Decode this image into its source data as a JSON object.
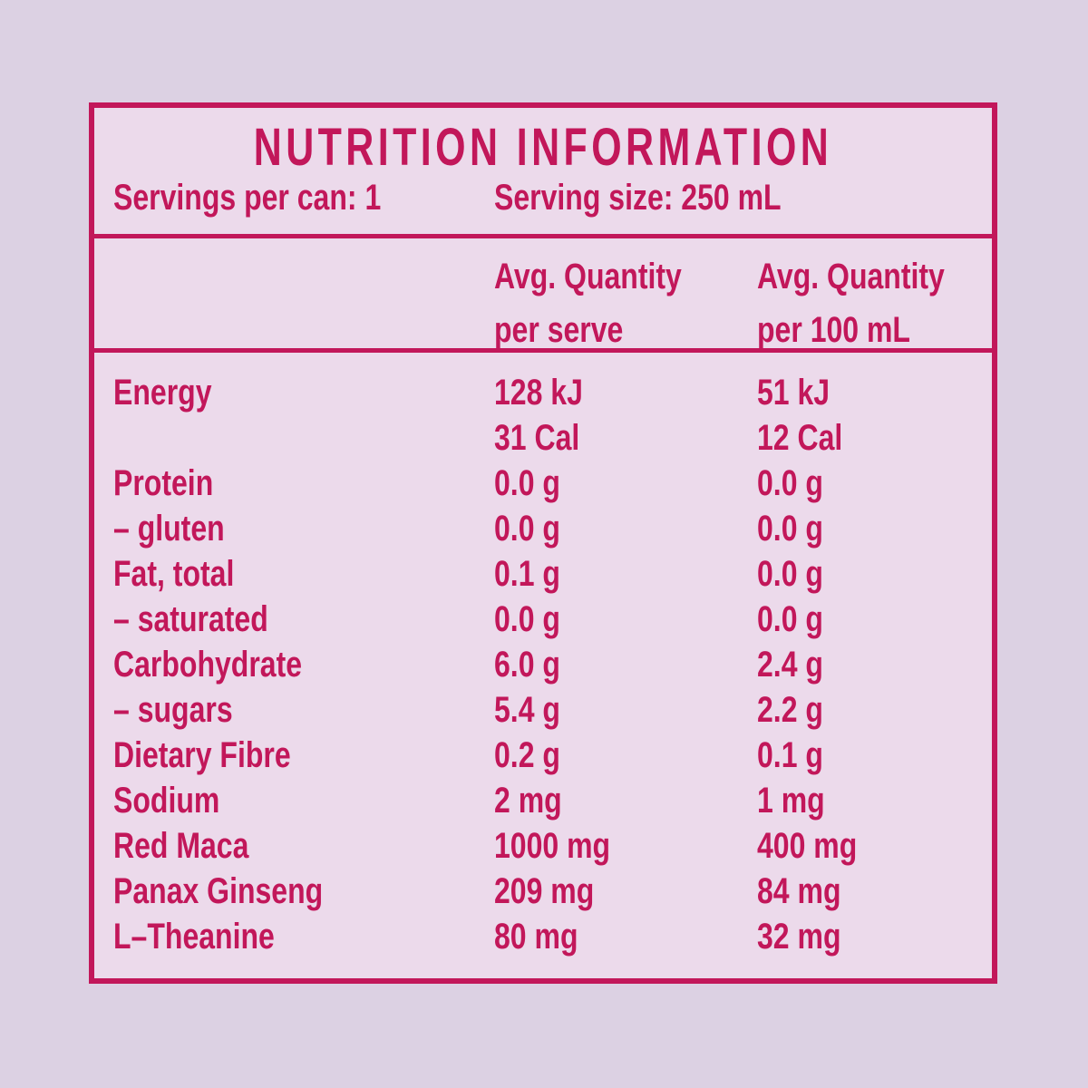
{
  "panel": {
    "title": "NUTRITION INFORMATION",
    "servings_label": "Servings per can: 1",
    "serving_size_label": "Serving size: 250 mL",
    "columns": {
      "per_serve": [
        "Avg. Quantity",
        "per serve"
      ],
      "per_100ml": [
        "Avg. Quantity",
        "per 100 mL"
      ]
    },
    "rows": [
      {
        "label": "Energy",
        "per_serve": "128 kJ",
        "per_100ml": "51 kJ"
      },
      {
        "label": "",
        "per_serve": "31 Cal",
        "per_100ml": "12 Cal"
      },
      {
        "label": "Protein",
        "per_serve": "0.0 g",
        "per_100ml": "0.0 g"
      },
      {
        "label": "– gluten",
        "per_serve": "0.0 g",
        "per_100ml": "0.0 g"
      },
      {
        "label": "Fat, total",
        "per_serve": "0.1 g",
        "per_100ml": "0.0 g"
      },
      {
        "label": "– saturated",
        "per_serve": "0.0 g",
        "per_100ml": "0.0 g"
      },
      {
        "label": "Carbohydrate",
        "per_serve": "6.0 g",
        "per_100ml": "2.4 g"
      },
      {
        "label": "– sugars",
        "per_serve": "5.4 g",
        "per_100ml": "2.2 g"
      },
      {
        "label": "Dietary Fibre",
        "per_serve": "0.2 g",
        "per_100ml": "0.1 g"
      },
      {
        "label": "Sodium",
        "per_serve": "2 mg",
        "per_100ml": "1 mg"
      },
      {
        "label": "Red Maca",
        "per_serve": "1000 mg",
        "per_100ml": "400 mg"
      },
      {
        "label": "Panax Ginseng",
        "per_serve": "209 mg",
        "per_100ml": "84 mg"
      },
      {
        "label": "L–Theanine",
        "per_serve": "80 mg",
        "per_100ml": "32 mg"
      }
    ],
    "colors": {
      "accent": "#C2175A",
      "panel_bg": "#ECDAEB",
      "page_bg": "#DCD1E3"
    }
  }
}
